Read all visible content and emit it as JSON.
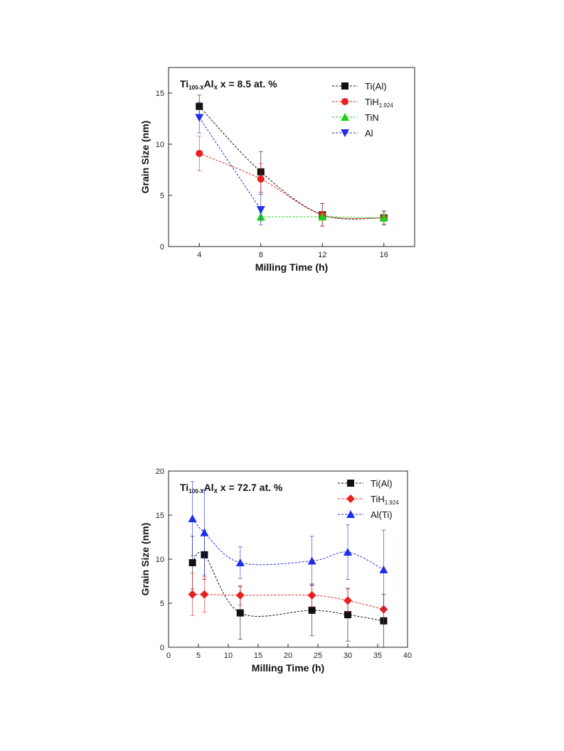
{
  "chart_data": [
    {
      "type": "scatter",
      "title": {
        "prefix": "Ti",
        "prefix_sub": "100-X",
        "mid": "Al",
        "mid_sub": "X",
        "suffix": "  x = 8.5 at. %"
      },
      "xlabel": "Milling Time (h)",
      "ylabel": "Grain Size (nm)",
      "xlim": [
        2,
        18
      ],
      "ylim": [
        0,
        17.5
      ],
      "xticks": [
        4,
        8,
        12,
        16
      ],
      "yticks": [
        0,
        5,
        10,
        15
      ],
      "legend_position": "top-right",
      "series": [
        {
          "name": "Ti(Al)",
          "name_sub": "",
          "color": "#111111",
          "marker": "square",
          "x": [
            4,
            8,
            12,
            16
          ],
          "y": [
            13.7,
            7.3,
            3.1,
            2.8
          ],
          "err": [
            1.1,
            2.0,
            1.1,
            0.6
          ]
        },
        {
          "name": "TiH",
          "name_sub": "1.924",
          "color": "#e8201f",
          "marker": "circle",
          "x": [
            4,
            8,
            12,
            16
          ],
          "y": [
            9.1,
            6.6,
            3.1,
            2.8
          ],
          "err": [
            1.7,
            1.5,
            1.1,
            0.7
          ]
        },
        {
          "name": "TiN",
          "name_sub": "",
          "color": "#19d219",
          "marker": "triangle-up",
          "x": [
            8,
            12,
            16
          ],
          "y": [
            2.9,
            2.9,
            2.8
          ],
          "err": [
            0.4,
            0.3,
            0.3
          ]
        },
        {
          "name": "Al",
          "name_sub": "",
          "color": "#1f2ee8",
          "marker": "triangle-down",
          "x": [
            4,
            8
          ],
          "y": [
            12.6,
            3.6
          ],
          "err": [
            1.5,
            1.5
          ]
        }
      ]
    },
    {
      "type": "scatter",
      "title": {
        "prefix": "Ti",
        "prefix_sub": "100-X",
        "mid": "Al",
        "mid_sub": "X",
        "suffix": "  x = 72.7 at. %"
      },
      "xlabel": "Milling Time (h)",
      "ylabel": "Grain Size (nm)",
      "xlim": [
        0,
        40
      ],
      "ylim": [
        0,
        20
      ],
      "xticks": [
        0,
        5,
        10,
        15,
        20,
        25,
        30,
        35,
        40
      ],
      "yticks": [
        0,
        5,
        10,
        15,
        20
      ],
      "legend_position": "top-right",
      "series": [
        {
          "name": "Ti(Al)",
          "name_sub": "",
          "color": "#111111",
          "marker": "square",
          "x": [
            4,
            6,
            12,
            24,
            30,
            36
          ],
          "y": [
            9.6,
            10.5,
            3.9,
            4.2,
            3.7,
            3.0
          ],
          "err": [
            3.0,
            2.8,
            3.0,
            2.9,
            3.0,
            3.0
          ]
        },
        {
          "name": "TiH",
          "name_sub": "1.924",
          "color": "#e8201f",
          "marker": "diamond",
          "x": [
            4,
            6,
            12,
            24,
            30,
            36
          ],
          "y": [
            6.0,
            6.0,
            5.9,
            5.9,
            5.3,
            4.3
          ],
          "err": [
            2.4,
            2.0,
            1.1,
            1.3,
            1.3,
            1.7
          ]
        },
        {
          "name": "Al(Ti)",
          "name_sub": "",
          "color": "#1f2ee8",
          "marker": "triangle-up",
          "x": [
            4,
            6,
            12,
            24,
            30,
            36
          ],
          "y": [
            14.6,
            13.0,
            9.6,
            9.8,
            10.8,
            8.8
          ],
          "err": [
            4.2,
            4.8,
            1.8,
            2.8,
            3.1,
            4.5
          ]
        }
      ]
    }
  ]
}
